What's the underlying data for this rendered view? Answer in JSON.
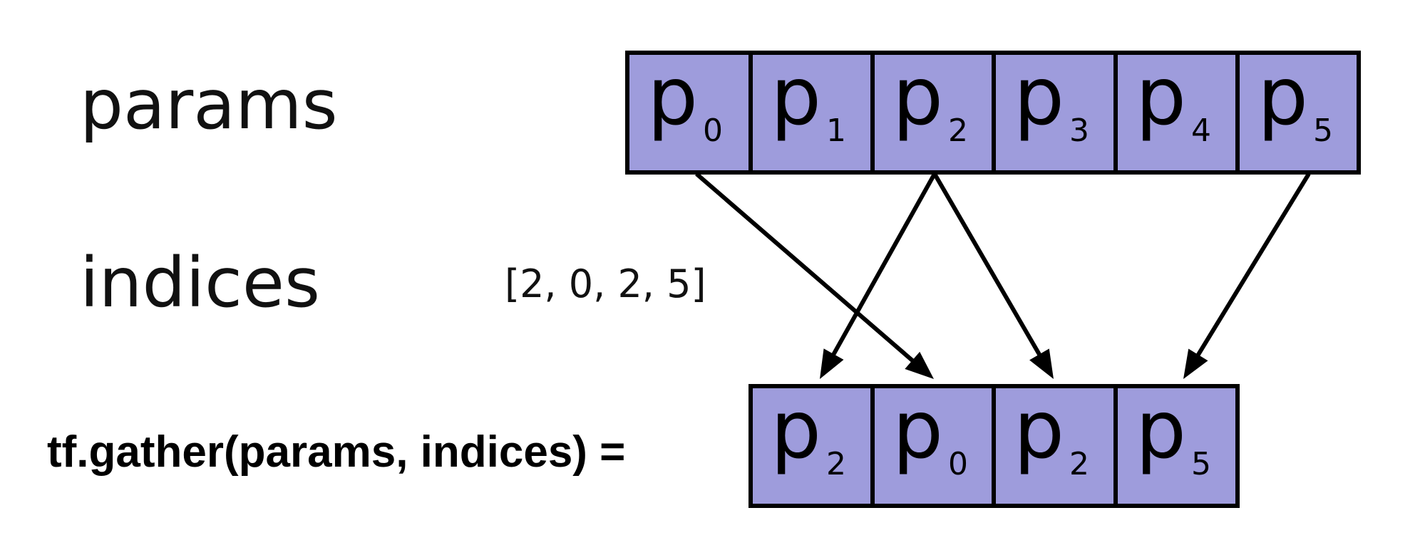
{
  "labels": {
    "params": "params",
    "indices": "indices",
    "indices_value": "[2, 0, 2, 5]",
    "gather_expr": "tf.gather(params, indices) ="
  },
  "params_row": [
    {
      "letter": "p",
      "sub": "0"
    },
    {
      "letter": "p",
      "sub": "1"
    },
    {
      "letter": "p",
      "sub": "2"
    },
    {
      "letter": "p",
      "sub": "3"
    },
    {
      "letter": "p",
      "sub": "4"
    },
    {
      "letter": "p",
      "sub": "5"
    }
  ],
  "result_row": [
    {
      "letter": "p",
      "sub": "2"
    },
    {
      "letter": "p",
      "sub": "0"
    },
    {
      "letter": "p",
      "sub": "2"
    },
    {
      "letter": "p",
      "sub": "5"
    }
  ],
  "indices": [
    2,
    0,
    2,
    5
  ],
  "colors": {
    "cell_fill": "#9e9cdc",
    "stroke": "#000000"
  }
}
